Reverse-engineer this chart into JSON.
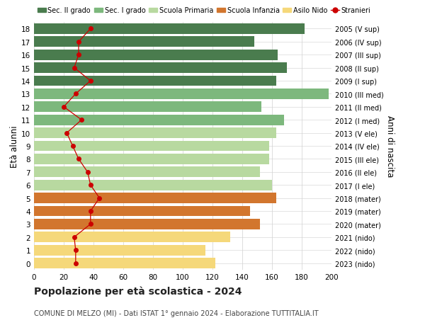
{
  "ages": [
    18,
    17,
    16,
    15,
    14,
    13,
    12,
    11,
    10,
    9,
    8,
    7,
    6,
    5,
    4,
    3,
    2,
    1,
    0
  ],
  "years": [
    "2005 (V sup)",
    "2006 (IV sup)",
    "2007 (III sup)",
    "2008 (II sup)",
    "2009 (I sup)",
    "2010 (III med)",
    "2011 (II med)",
    "2012 (I med)",
    "2013 (V ele)",
    "2014 (IV ele)",
    "2015 (III ele)",
    "2016 (II ele)",
    "2017 (I ele)",
    "2018 (mater)",
    "2019 (mater)",
    "2020 (mater)",
    "2021 (nido)",
    "2022 (nido)",
    "2023 (nido)"
  ],
  "bar_values": [
    182,
    148,
    164,
    170,
    163,
    198,
    153,
    168,
    163,
    158,
    158,
    152,
    160,
    163,
    145,
    152,
    132,
    115,
    122
  ],
  "stranieri": [
    38,
    30,
    30,
    27,
    38,
    28,
    20,
    32,
    22,
    26,
    30,
    36,
    38,
    44,
    38,
    38,
    27,
    28,
    28
  ],
  "bar_colors": [
    "#4a7c4e",
    "#4a7c4e",
    "#4a7c4e",
    "#4a7c4e",
    "#4a7c4e",
    "#7db87d",
    "#7db87d",
    "#7db87d",
    "#b8d9a0",
    "#b8d9a0",
    "#b8d9a0",
    "#b8d9a0",
    "#b8d9a0",
    "#d2762e",
    "#d2762e",
    "#d2762e",
    "#f5d87a",
    "#f5d87a",
    "#f5d87a"
  ],
  "title": "Popolazione per età scolastica - 2024",
  "subtitle": "COMUNE DI MELZO (MI) - Dati ISTAT 1° gennaio 2024 - Elaborazione TUTTITALIA.IT",
  "ylabel_left": "Età alunni",
  "ylabel_right": "Anni di nascita",
  "xlim_max": 200,
  "xticks": [
    0,
    20,
    40,
    60,
    80,
    100,
    120,
    140,
    160,
    180,
    200
  ],
  "legend_labels": [
    "Sec. II grado",
    "Sec. I grado",
    "Scuola Primaria",
    "Scuola Infanzia",
    "Asilo Nido",
    "Stranieri"
  ],
  "legend_colors": [
    "#4a7c4e",
    "#7db87d",
    "#b8d9a0",
    "#d2762e",
    "#f5d87a",
    "#cc0000"
  ],
  "stranieri_color": "#cc0000",
  "background_color": "#ffffff",
  "grid_color": "#d0d0d0"
}
